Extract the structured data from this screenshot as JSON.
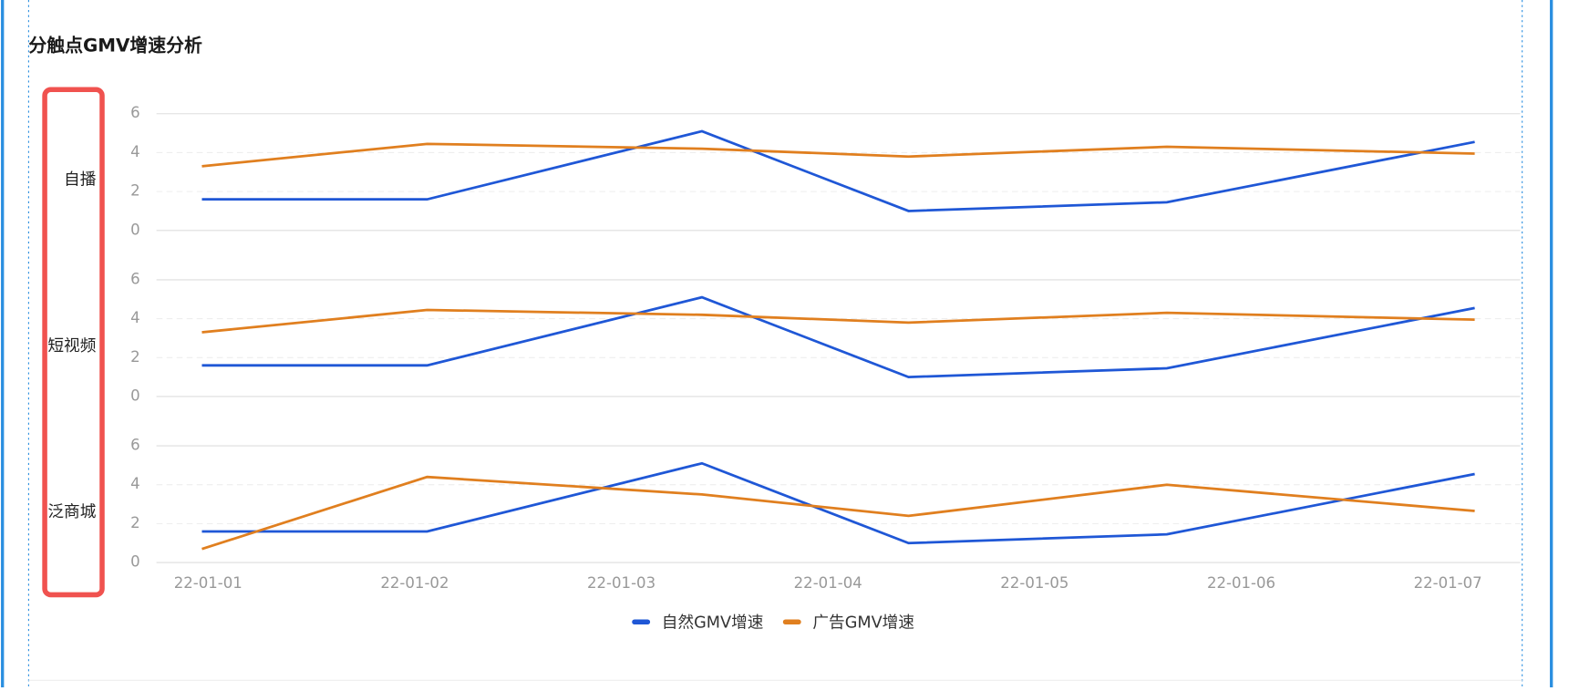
{
  "chart_data": {
    "type": "line",
    "title": "分触点GMV增速分析",
    "xticks": [
      {
        "value": 0,
        "label": "22-01-01"
      },
      {
        "value": 1,
        "label": "22-01-02"
      },
      {
        "value": 2,
        "label": "22-01-03"
      },
      {
        "value": 3,
        "label": "22-01-04"
      },
      {
        "value": 4,
        "label": "22-01-05"
      },
      {
        "value": 5,
        "label": "22-01-06"
      },
      {
        "value": 6,
        "label": "22-01-07"
      }
    ],
    "xlim": [
      -0.25,
      6.35
    ],
    "x": [
      -0.03,
      1.06,
      2.39,
      3.39,
      4.64,
      6.13
    ],
    "ylim": [
      0,
      6
    ],
    "yticks": [
      0,
      2,
      4,
      6
    ],
    "grid": true,
    "series": [
      {
        "name": "自然GMV增速",
        "color": "#1f57d6"
      },
      {
        "name": "广告GMV增速",
        "color": "#e07f1f"
      }
    ],
    "panels": [
      {
        "label": "自播",
        "values": [
          [
            1.6,
            1.6,
            5.1,
            1.0,
            1.45,
            4.55
          ],
          [
            3.3,
            4.45,
            4.2,
            3.8,
            4.3,
            3.95
          ]
        ]
      },
      {
        "label": "短视频",
        "values": [
          [
            1.6,
            1.6,
            5.1,
            1.0,
            1.45,
            4.55
          ],
          [
            3.3,
            4.45,
            4.2,
            3.8,
            4.3,
            3.95
          ]
        ]
      },
      {
        "label": "泛商城",
        "values": [
          [
            1.6,
            1.6,
            5.1,
            1.0,
            1.45,
            4.55
          ],
          [
            0.7,
            4.4,
            3.5,
            2.4,
            4.0,
            2.65
          ]
        ]
      }
    ]
  }
}
